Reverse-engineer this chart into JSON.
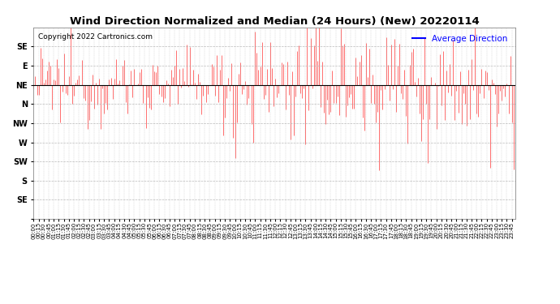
{
  "title": "Wind Direction Normalized and Median (24 Hours) (New) 20220114",
  "copyright": "Copyright 2022 Cartronics.com",
  "legend_label": "Average Direction",
  "legend_color": "#0000ff",
  "background_color": "#ffffff",
  "plot_bg_color": "#ffffff",
  "grid_color": "#aaaaaa",
  "bar_color": "#ff0000",
  "avg_line_color": "#000000",
  "avg_line_value": 45,
  "y_ticks": [
    90,
    67.5,
    45,
    22.5,
    0,
    -22.5,
    -45,
    -67.5,
    -90,
    -112.5
  ],
  "y_tick_labels": [
    "SE",
    "E",
    "NE",
    "N",
    "NW",
    "W",
    "SW",
    "S",
    "SE",
    ""
  ],
  "ylim": [
    -112.5,
    112.5
  ],
  "title_fontsize": 9.5,
  "tick_fontsize": 7,
  "xlabel_step": 3,
  "num_points": 288,
  "seed": 12345,
  "base_value": 45,
  "noise_scale_early": 22,
  "noise_scale_late": 38
}
